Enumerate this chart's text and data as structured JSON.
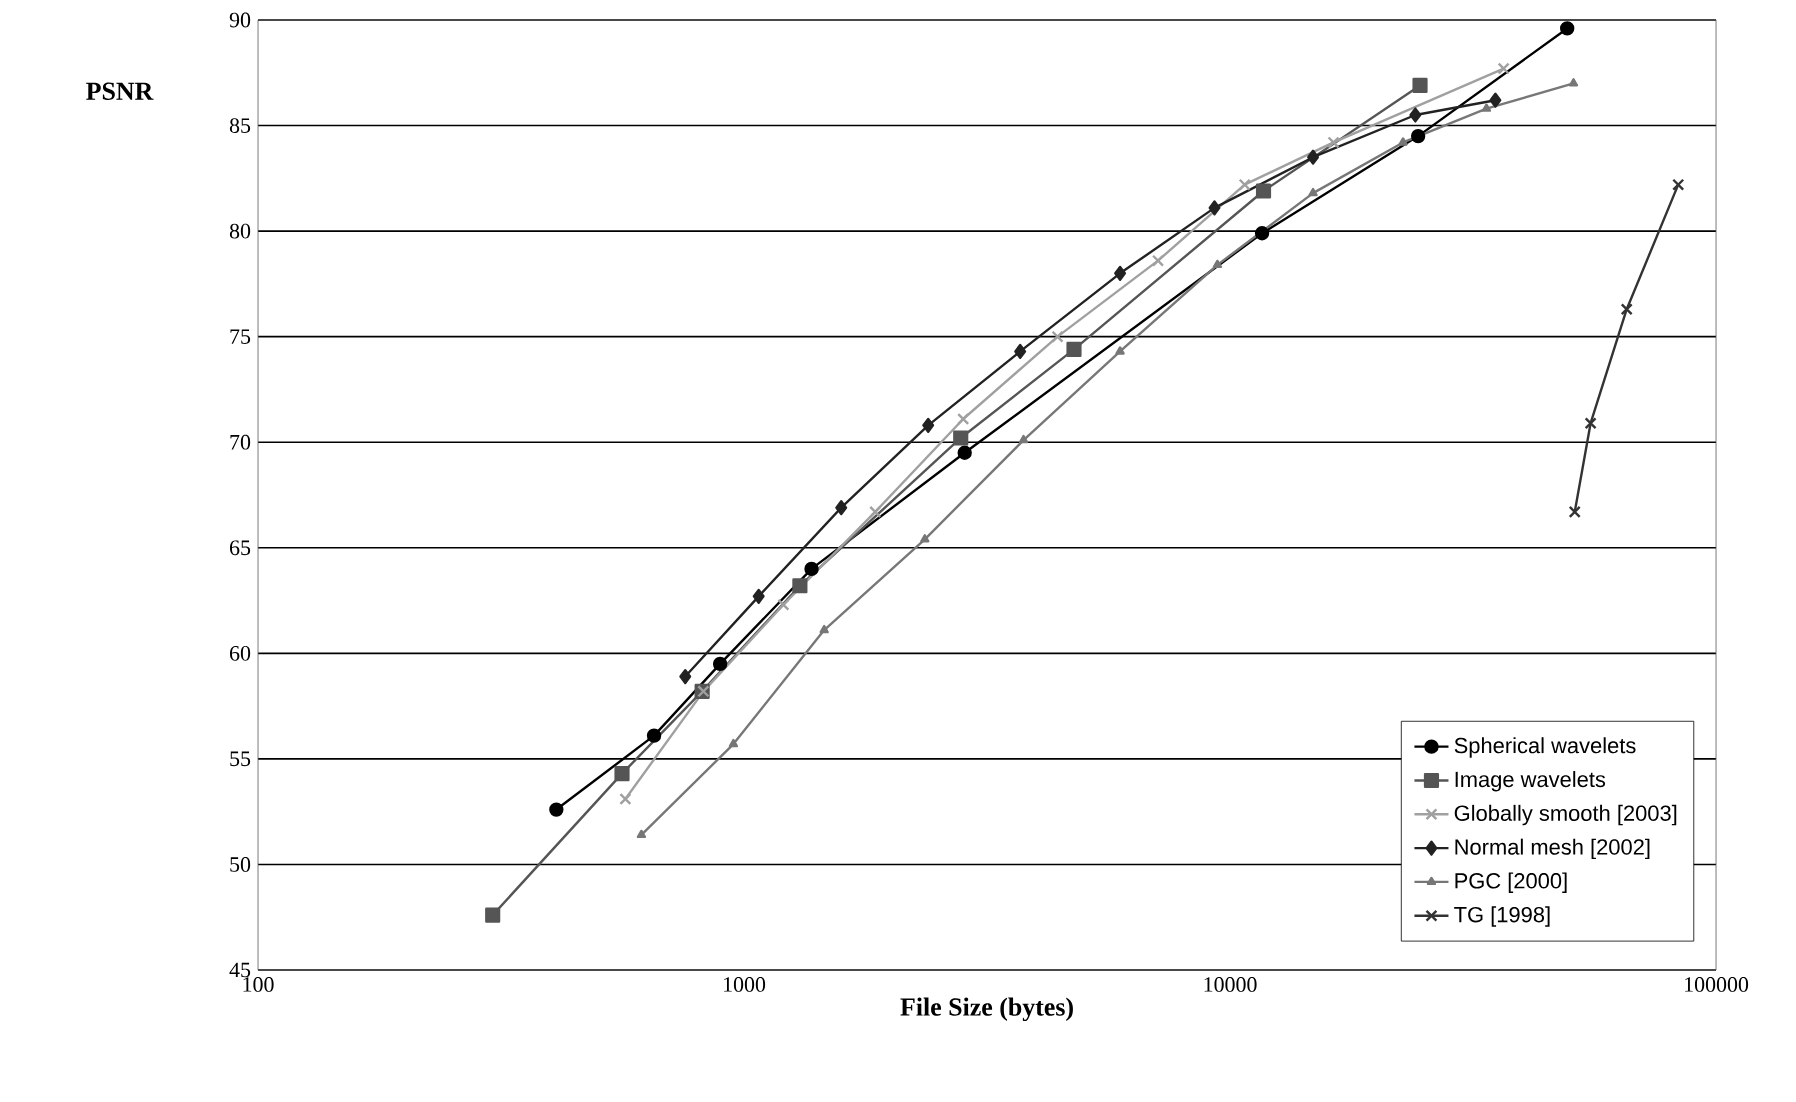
{
  "chart_data": {
    "type": "line",
    "xlabel": "File Size (bytes)",
    "ylabel": "PSNR",
    "log": "x",
    "xlim": [
      100,
      100000
    ],
    "xticks": [
      100,
      1000,
      10000,
      100000
    ],
    "ylim": [
      45,
      90
    ],
    "yticks": [
      45,
      50,
      55,
      60,
      65,
      70,
      75,
      80,
      85,
      90
    ],
    "grid": "y",
    "legend": "bottom right",
    "series": [
      {
        "name": "Spherical wavelets",
        "color": "#000000",
        "marker": "circle",
        "x": [
          411,
          653,
          893,
          1377,
          2845,
          11640,
          24380,
          49400
        ],
        "values": [
          52.6,
          56.1,
          59.5,
          64.0,
          69.5,
          79.9,
          84.5,
          89.6
        ]
      },
      {
        "name": "Image wavelets",
        "color": "#555555",
        "marker": "square",
        "x": [
          304,
          561,
          820,
          1303,
          2792,
          4775,
          11720,
          24600
        ],
        "values": [
          47.6,
          54.3,
          58.2,
          63.2,
          70.2,
          74.4,
          81.9,
          86.9
        ]
      },
      {
        "name": "Globally smooth [2003]",
        "color": "#a0a0a0",
        "marker": "cross",
        "x": [
          570,
          825,
          1205,
          1862,
          2825,
          4417,
          7110,
          10720,
          16330,
          36560
        ],
        "values": [
          53.1,
          58.2,
          62.3,
          66.7,
          71.1,
          75.0,
          78.6,
          82.2,
          84.2,
          87.7
        ]
      },
      {
        "name": "Normal mesh [2002]",
        "color": "#222222",
        "marker": "diamond",
        "x": [
          757,
          1072,
          1585,
          2393,
          3700,
          5940,
          9290,
          14820,
          24060,
          35160
        ],
        "values": [
          58.9,
          62.7,
          66.9,
          70.8,
          74.3,
          78.0,
          81.1,
          83.5,
          85.5,
          86.2
        ]
      },
      {
        "name": "PGC [2000]",
        "color": "#777777",
        "marker": "triangle",
        "x": [
          615,
          951,
          1462,
          2355,
          3760,
          5940,
          9420,
          14820,
          22700,
          33700,
          50900
        ],
        "values": [
          51.4,
          55.7,
          61.1,
          65.4,
          70.1,
          74.3,
          78.4,
          81.8,
          84.2,
          85.8,
          87.0
        ]
      },
      {
        "name": "TG [1998]",
        "color": "#333333",
        "marker": "cross",
        "x": [
          51200,
          55200,
          65500,
          83600
        ],
        "values": [
          66.7,
          70.9,
          76.3,
          82.2
        ]
      }
    ]
  }
}
